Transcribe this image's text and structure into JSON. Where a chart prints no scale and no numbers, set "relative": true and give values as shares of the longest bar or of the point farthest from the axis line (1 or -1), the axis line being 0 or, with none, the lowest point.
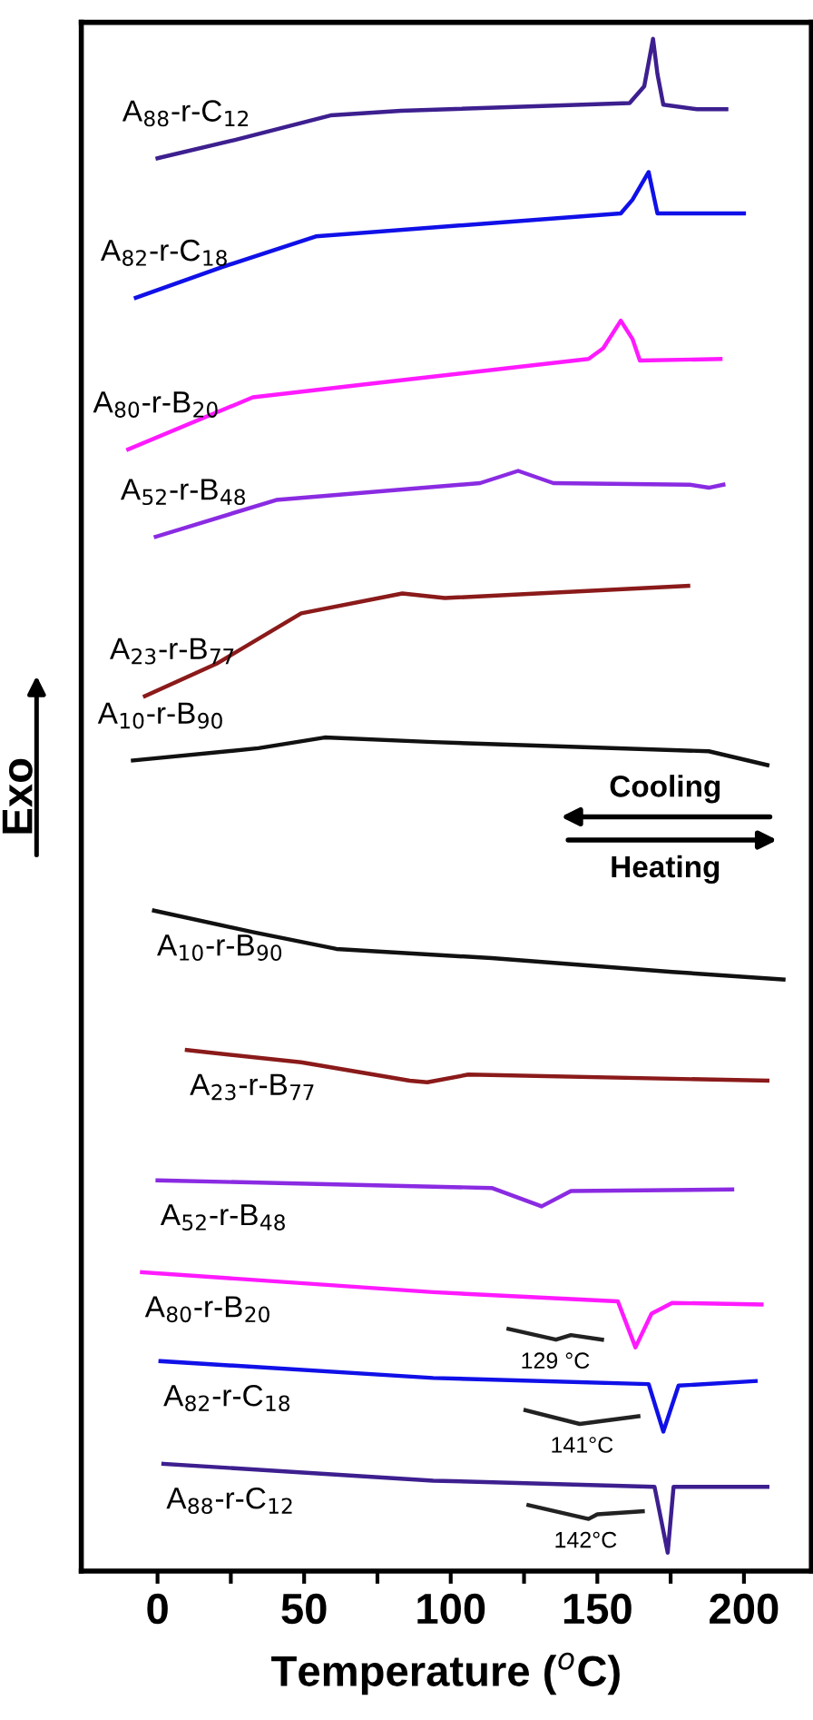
{
  "chart_data": {
    "type": "line",
    "relative": true,
    "xlabel": "Temperature ($^{o}$C)",
    "ylabel": "Exo",
    "xlim": [
      -26,
      223
    ],
    "xticks": [
      0,
      {
        "value": 25,
        "label": null
      },
      50,
      {
        "value": 75,
        "label": null
      },
      100,
      {
        "value": 125,
        "label": null
      },
      150,
      {
        "value": 175,
        "label": null
      },
      200
    ],
    "tick_labels": "x",
    "grid": false,
    "legend": false,
    "marker": "none",
    "line_style": "solid",
    "series": [
      {
        "name": "A$_{88}$-r-C$_{12}$",
        "color": "#3d1f8f",
        "x": [
          0,
          26.4,
          59,
          83,
          161,
          166,
          169,
          170.5,
          172.5,
          184,
          194
        ],
        "values": [
          0.922,
          0.934,
          0.95,
          0.953,
          0.958,
          0.969,
          1.0,
          0.977,
          0.957,
          0.954,
          0.954
        ]
      },
      {
        "name": "A$_{82}$-r-C$_{18}$",
        "color": "#1010e8",
        "x": [
          -7.4,
          22,
          54,
          102,
          158,
          162,
          167.5,
          169.5,
          170.5,
          200
        ],
        "values": [
          0.831,
          0.851,
          0.871,
          0.878,
          0.886,
          0.895,
          0.913,
          0.895,
          0.886,
          0.886
        ]
      },
      {
        "name": "A$_{80}$-r-B$_{20}$",
        "color": "#ff1aff",
        "x": [
          -10,
          32.5,
          73.4,
          147,
          152,
          158,
          162,
          164.5,
          192
        ],
        "values": [
          0.732,
          0.766,
          0.775,
          0.791,
          0.798,
          0.816,
          0.804,
          0.79,
          0.791
        ]
      },
      {
        "name": "A$_{52}$-r-B$_{48}$",
        "color": "#8a2be2",
        "x": [
          -0.6,
          40.5,
          110,
          123,
          135,
          181.5,
          188,
          193
        ],
        "values": [
          0.675,
          0.699,
          0.71,
          0.718,
          0.71,
          0.709,
          0.707,
          0.709
        ]
      },
      {
        "name": "A$_{23}$-r-B$_{77}$",
        "color": "#8b1a1a",
        "x": [
          -4.3,
          20,
          49,
          83.5,
          98,
          181
        ],
        "values": [
          0.571,
          0.592,
          0.625,
          0.638,
          0.635,
          0.643
        ]
      },
      {
        "name": "A$_{10}$-r-B$_{90}$",
        "color": "#111111",
        "x": [
          -8.4,
          34.4,
          57,
          94,
          188,
          208
        ],
        "values": [
          0.529,
          0.537,
          0.544,
          0.541,
          0.535,
          0.526
        ]
      },
      {
        "name": "A$_{10}$-r-B$_{90}$",
        "color": "#111111",
        "x": [
          -1.2,
          32.5,
          61,
          114,
          175.5,
          213.5
        ],
        "values": [
          0.431,
          0.417,
          0.406,
          0.4,
          0.391,
          0.386
        ]
      },
      {
        "name": "A$_{23}$-r-B$_{77}$",
        "color": "#8b1a1a",
        "x": [
          10,
          49,
          86,
          92,
          106,
          208
        ],
        "values": [
          0.34,
          0.332,
          0.32,
          0.319,
          0.324,
          0.32
        ]
      },
      {
        "name": "A$_{52}$-r-B$_{48}$",
        "color": "#8a2be2",
        "x": [
          0,
          114,
          131,
          141,
          196
        ],
        "values": [
          0.255,
          0.25,
          0.238,
          0.248,
          0.249
        ]
      },
      {
        "name": "A$_{80}$-r-B$_{20}$",
        "color": "#ff1aff",
        "x": [
          -5.3,
          94,
          157,
          163,
          168.5,
          175.5,
          206
        ],
        "values": [
          0.195,
          0.182,
          0.176,
          0.146,
          0.168,
          0.175,
          0.174
        ]
      },
      {
        "name": "A$_{82}$-r-C$_{18}$",
        "color": "#1010e8",
        "x": [
          1,
          94,
          167.5,
          172.5,
          177.7,
          204
        ],
        "values": [
          0.137,
          0.126,
          0.122,
          0.091,
          0.121,
          0.124
        ]
      },
      {
        "name": "A$_{88}$-r-C$_{12}$",
        "color": "#3d1f8f",
        "x": [
          2,
          94,
          169.5,
          174,
          176,
          208
        ],
        "values": [
          0.07,
          0.059,
          0.055,
          0.012,
          0.055,
          0.055
        ]
      },
      {
        "name": "129 °C",
        "color": "#222222",
        "x": [
          119.7,
          135.9,
          141,
          151.6
        ],
        "values": [
          0.158,
          0.151,
          0.154,
          0.151
        ]
      },
      {
        "name": "141°C",
        "color": "#222222",
        "x": [
          125.5,
          144,
          164
        ],
        "values": [
          0.105,
          0.096,
          0.101
        ]
      },
      {
        "name": "142°C",
        "color": "#222222",
        "x": [
          126.5,
          147,
          150,
          165.5
        ],
        "values": [
          0.043,
          0.034,
          0.037,
          0.039
        ]
      }
    ],
    "annotations": [
      "Cooling",
      "Heating"
    ]
  }
}
